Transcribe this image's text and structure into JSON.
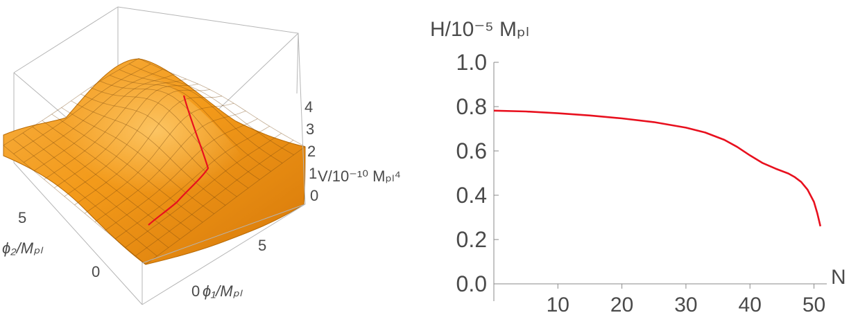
{
  "chart_data": [
    {
      "type": "surface",
      "z_ticks": [
        "0",
        "1",
        "2",
        "3",
        "4"
      ],
      "z_label": "V/10⁻¹⁰ Mₚₗ⁴",
      "x_label": "ϕ₁/Mₚₗ",
      "y_label": "ϕ₂/Mₚₗ",
      "x_ticks": [
        "0",
        "5"
      ],
      "y_ticks": [
        "0",
        "5"
      ],
      "surface_color": "#f5a623",
      "trajectory_color": "#e8101e"
    },
    {
      "type": "line",
      "title": "H/10⁻⁵ Mₚₗ",
      "xlabel": "N",
      "xlim": [
        0,
        52
      ],
      "ylim": [
        0,
        1.0
      ],
      "x_ticks": [
        "10",
        "20",
        "30",
        "40",
        "50"
      ],
      "y_ticks": [
        "0.0",
        "0.2",
        "0.4",
        "0.6",
        "0.8",
        "1.0"
      ],
      "series": [
        {
          "color": "#e8101e",
          "x": [
            0,
            5,
            10,
            15,
            20,
            25,
            30,
            33,
            36,
            38,
            40,
            42,
            44,
            46,
            47,
            48,
            49,
            50,
            50.5,
            51
          ],
          "y": [
            0.782,
            0.778,
            0.77,
            0.76,
            0.747,
            0.73,
            0.705,
            0.683,
            0.65,
            0.618,
            0.58,
            0.545,
            0.52,
            0.498,
            0.482,
            0.46,
            0.425,
            0.37,
            0.32,
            0.26
          ]
        }
      ]
    }
  ]
}
